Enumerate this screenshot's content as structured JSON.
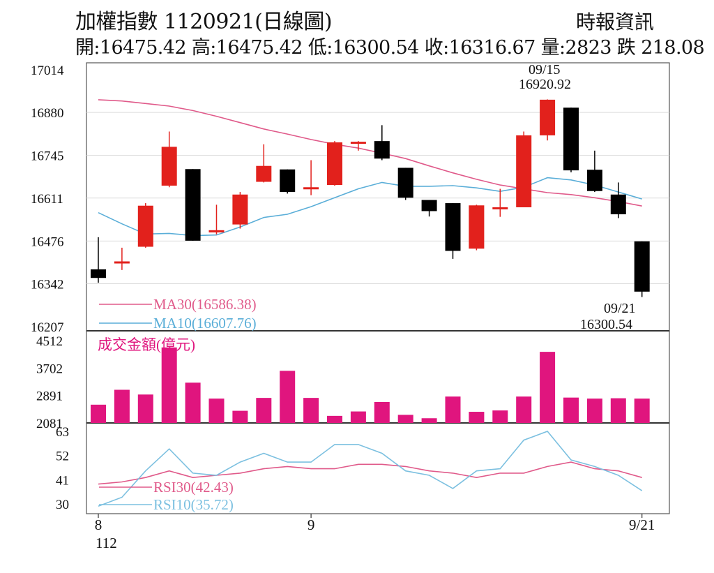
{
  "header": {
    "title": "加權指數 1120921(日線圖)",
    "source": "時報資訊",
    "stats": "開:16475.42 高:16475.42 低:16300.54 收:16316.67 量:2823 跌 218.08"
  },
  "colors": {
    "up": "#e2211c",
    "down": "#000000",
    "ma30": "#e05a8a",
    "ma10": "#5aaed8",
    "volume": "#e0157e",
    "rsi30": "#e05a8a",
    "rsi10": "#7cc0e0"
  },
  "chart_data": [
    {
      "type": "candlestick",
      "title": "加權指數 1120921(日線圖)",
      "ylim": [
        16207,
        17014
      ],
      "yticks": [
        "17014",
        "16880",
        "16745",
        "16611",
        "16476",
        "16342",
        "16207"
      ],
      "candles": [
        {
          "o": 16387,
          "h": 16488,
          "l": 16345,
          "c": 16360
        },
        {
          "o": 16407,
          "h": 16455,
          "l": 16385,
          "c": 16412
        },
        {
          "o": 16458,
          "h": 16595,
          "l": 16455,
          "c": 16587
        },
        {
          "o": 16650,
          "h": 16820,
          "l": 16645,
          "c": 16772
        },
        {
          "o": 16702,
          "h": 16702,
          "l": 16477,
          "c": 16477
        },
        {
          "o": 16503,
          "h": 16590,
          "l": 16497,
          "c": 16510
        },
        {
          "o": 16528,
          "h": 16630,
          "l": 16515,
          "c": 16622
        },
        {
          "o": 16662,
          "h": 16780,
          "l": 16660,
          "c": 16712
        },
        {
          "o": 16701,
          "h": 16701,
          "l": 16625,
          "c": 16630
        },
        {
          "o": 16640,
          "h": 16730,
          "l": 16620,
          "c": 16645
        },
        {
          "o": 16652,
          "h": 16790,
          "l": 16650,
          "c": 16786
        },
        {
          "o": 16784,
          "h": 16790,
          "l": 16760,
          "c": 16788
        },
        {
          "o": 16790,
          "h": 16840,
          "l": 16730,
          "c": 16735
        },
        {
          "o": 16706,
          "h": 16706,
          "l": 16605,
          "c": 16612
        },
        {
          "o": 16605,
          "h": 16605,
          "l": 16553,
          "c": 16570
        },
        {
          "o": 16595,
          "h": 16595,
          "l": 16420,
          "c": 16445
        },
        {
          "o": 16452,
          "h": 16590,
          "l": 16447,
          "c": 16588
        },
        {
          "o": 16577,
          "h": 16640,
          "l": 16552,
          "c": 16582
        },
        {
          "o": 16582,
          "h": 16820,
          "l": 16582,
          "c": 16808
        },
        {
          "o": 16808,
          "h": 16921,
          "l": 16792,
          "c": 16920
        },
        {
          "o": 16895,
          "h": 16895,
          "l": 16692,
          "c": 16698
        },
        {
          "o": 16700,
          "h": 16760,
          "l": 16630,
          "c": 16633
        },
        {
          "o": 16622,
          "h": 16660,
          "l": 16548,
          "c": 16560
        },
        {
          "o": 16475,
          "h": 16475,
          "l": 16300,
          "c": 16317
        }
      ],
      "ma30": [
        16920,
        16916,
        16908,
        16900,
        16886,
        16868,
        16848,
        16828,
        16812,
        16795,
        16780,
        16768,
        16752,
        16735,
        16712,
        16690,
        16670,
        16652,
        16640,
        16628,
        16622,
        16612,
        16600,
        16586
      ],
      "ma10": [
        16565,
        16530,
        16498,
        16500,
        16493,
        16495,
        16520,
        16550,
        16560,
        16584,
        16612,
        16640,
        16660,
        16648,
        16648,
        16650,
        16643,
        16632,
        16645,
        16675,
        16668,
        16652,
        16630,
        16608
      ],
      "legend": [
        {
          "name": "MA30(16586.38)",
          "color": "#e05a8a"
        },
        {
          "name": "MA10(16607.76)",
          "color": "#5aaed8"
        }
      ],
      "annotations": [
        {
          "date": "09/15",
          "value": "16920.92"
        },
        {
          "date": "09/21",
          "value": "16300.54"
        }
      ]
    },
    {
      "type": "bar",
      "title": "成交金額(億元)",
      "ylim": [
        2081,
        4512
      ],
      "yticks": [
        "4512",
        "3702",
        "2891",
        "2081"
      ],
      "values": [
        2620,
        3060,
        2920,
        4310,
        3270,
        2800,
        2440,
        2820,
        3620,
        2820,
        2290,
        2420,
        2700,
        2320,
        2220,
        2860,
        2410,
        2450,
        2860,
        4180,
        2830,
        2800,
        2810,
        2800
      ]
    },
    {
      "type": "line",
      "title": "",
      "ylim": [
        30,
        63
      ],
      "yticks": [
        "63",
        "52",
        "41",
        "30"
      ],
      "series": [
        {
          "name": "RSI30(42.43)",
          "color": "#e05a8a",
          "values": [
            39,
            40,
            42,
            45,
            42,
            43,
            44,
            46,
            47,
            46,
            46,
            48,
            48,
            47,
            45,
            44,
            42,
            44,
            44,
            47,
            49,
            46,
            45,
            42
          ]
        },
        {
          "name": "RSI10(35.72)",
          "color": "#7cc0e0",
          "values": [
            29,
            33,
            45,
            55,
            44,
            43,
            49,
            53,
            49,
            49,
            57,
            57,
            53,
            45,
            43,
            37,
            45,
            46,
            59,
            63,
            50,
            47,
            43,
            36
          ]
        }
      ]
    }
  ],
  "x_axis": {
    "labels": [
      {
        "text": "8",
        "index": 0
      },
      {
        "text": "9",
        "index": 9
      },
      {
        "text": "9/21",
        "index": 23
      }
    ],
    "year": "112"
  }
}
